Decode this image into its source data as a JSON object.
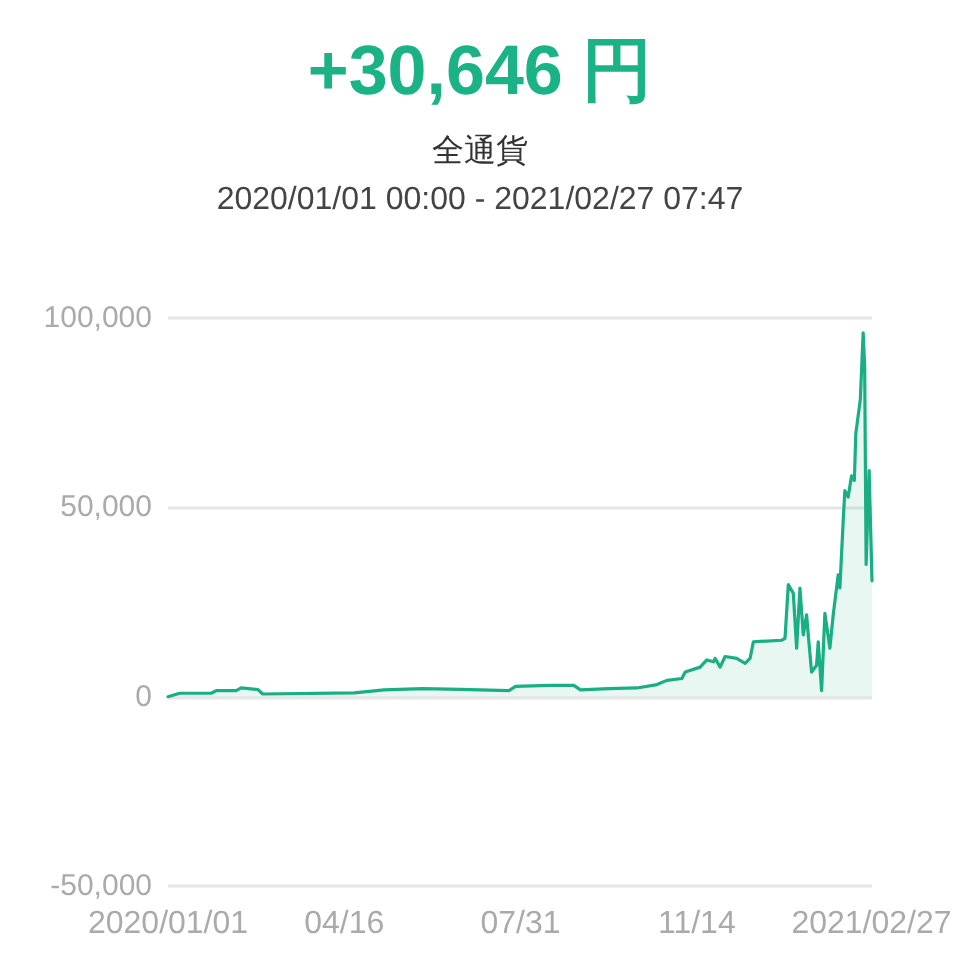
{
  "chart_data": {
    "type": "area",
    "title": "+30,646 円",
    "subtitle": "全通貨",
    "annotations": [
      "2020/01/01 00:00 - 2021/02/27 07:47"
    ],
    "x": [
      "2020-01-01",
      "2020-01-08",
      "2020-01-27",
      "2020-01-30",
      "2020-02-11",
      "2020-02-14",
      "2020-02-24",
      "2020-02-27",
      "2020-04-22",
      "2020-05-10",
      "2020-06-02",
      "2020-06-25",
      "2020-07-24",
      "2020-07-28",
      "2020-08-17",
      "2020-09-01",
      "2020-09-05",
      "2020-09-22",
      "2020-10-09",
      "2020-10-21",
      "2020-10-27",
      "2020-11-05",
      "2020-11-07",
      "2020-11-16",
      "2020-11-20",
      "2020-11-24",
      "2020-11-25",
      "2020-11-28",
      "2020-12-01",
      "2020-12-08",
      "2020-12-13",
      "2020-12-16",
      "2020-12-18",
      "2021-01-04",
      "2021-01-06",
      "2021-01-08",
      "2021-01-11",
      "2021-01-13",
      "2021-01-15",
      "2021-01-17",
      "2021-01-19",
      "2021-01-20",
      "2021-01-22",
      "2021-01-25",
      "2021-01-26",
      "2021-01-28",
      "2021-01-30",
      "2021-02-02",
      "2021-02-04",
      "2021-02-07",
      "2021-02-08",
      "2021-02-10",
      "2021-02-11",
      "2021-02-13",
      "2021-02-15",
      "2021-02-16T17:00",
      "2021-02-17T14:00",
      "2021-02-20T07:00",
      "2021-02-22T00:00",
      "2021-02-22T22:00",
      "2021-02-23T19:00",
      "2021-02-25T14:00",
      "2021-02-27T07:47"
    ],
    "series": [
      {
        "color": "#1aae84",
        "values": [
          0,
          900,
          900,
          1600,
          1600,
          2300,
          1900,
          700,
          1000,
          1800,
          2100,
          1900,
          1600,
          2700,
          3000,
          3000,
          1800,
          2100,
          2300,
          3200,
          4300,
          4800,
          6500,
          7800,
          9700,
          9200,
          10100,
          7800,
          10600,
          10100,
          8800,
          10100,
          14500,
          14900,
          15400,
          29600,
          27300,
          12800,
          28700,
          16300,
          21600,
          16300,
          6500,
          8300,
          14500,
          1600,
          22000,
          12800,
          21600,
          32200,
          28700,
          46400,
          54400,
          52700,
          58300,
          57100,
          69500,
          78400,
          96100,
          87300,
          34900,
          59700,
          30600
        ]
      }
    ],
    "xlim": [
      "2020-01-01T00:00",
      "2021-02-27T07:47"
    ],
    "xticks": [
      {
        "value": "2020-01-01",
        "label": "2020/01/01"
      },
      {
        "value": "2020-04-16",
        "label": "04/16"
      },
      {
        "value": "2020-07-31",
        "label": "07/31"
      },
      {
        "value": "2020-11-14",
        "label": "11/14"
      },
      {
        "value": "2021-02-27",
        "label": "2021/02/27"
      }
    ],
    "ylim": [
      -50000,
      100000
    ],
    "yticks": [
      {
        "value": -50000,
        "label": "-50,000"
      },
      0,
      {
        "value": 50000,
        "label": "50,000"
      },
      {
        "value": 100000,
        "label": "100,000"
      }
    ],
    "grid": "y"
  }
}
